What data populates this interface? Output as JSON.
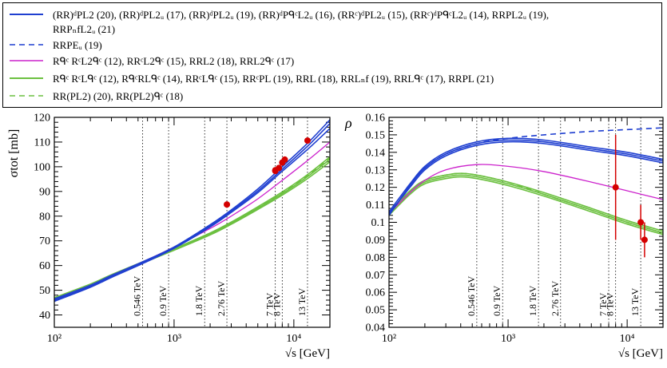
{
  "legend": [
    {
      "text": "(RR)ᵈPL2 (20), (RR)ᵈPL2ᵤ (17), (RR)ᵈPL2ᵤ (19), (RR)ᵈPᑫᶜL2ᵤ (16), (RRᶜ)ᵈPL2ᵤ (15), (RRᶜ)ᵈPᑫᶜL2ᵤ (14), RRPL2ᵤ (19),",
      "color": "#1f3fd0",
      "dash": "solid"
    },
    {
      "text": "RRPₙfL2ᵤ (21)",
      "color": "",
      "dash": "none"
    },
    {
      "text": "RRPEᵤ (19)",
      "color": "#1f3fd0",
      "dash": "dashed"
    },
    {
      "text": "Rᑫᶜ RᶜL2ᑫᶜ (12), RRᶜL2ᑫᶜ (15), RRL2 (18), RRL2ᑫᶜ (17)",
      "color": "#cc22cc",
      "dash": "solid"
    },
    {
      "text": "Rᑫᶜ RᶜLᑫᶜ (12), RᑫᶜRLᑫᶜ (14), RRᶜLᑫᶜ (15), RRᶜPL (19), RRL (18), RRLₙf (19), RRLᑫᶜ (17), RRPL (21)",
      "color": "#6cc040",
      "dash": "solid"
    },
    {
      "text": "RR(PL2) (20), RR(PL2)ᑫᶜ (18)",
      "color": "#6cc040",
      "dash": "dashed"
    }
  ],
  "chart_data": [
    {
      "type": "line",
      "name": "sigma_tot",
      "ylabel": "σtot  [mb]",
      "xlabel": "√s   [GeV]",
      "xscale": "log",
      "xlim": [
        100,
        20000
      ],
      "ylim": [
        35,
        120
      ],
      "yticks": [
        40,
        50,
        60,
        70,
        80,
        90,
        100,
        110,
        120
      ],
      "xticks": [
        {
          "value": 100,
          "label": "10²"
        },
        {
          "value": 1000,
          "label": "10³"
        },
        {
          "value": 10000,
          "label": "10⁴"
        }
      ],
      "energy_lines": [
        {
          "x": 546,
          "label": "0.546 TeV"
        },
        {
          "x": 900,
          "label": "0.9 TeV"
        },
        {
          "x": 1800,
          "label": "1.8 TeV"
        },
        {
          "x": 2760,
          "label": "2.76 TeV"
        },
        {
          "x": 7000,
          "label": "7 TeV"
        },
        {
          "x": 8000,
          "label": "8 TeV"
        },
        {
          "x": 13000,
          "label": "13 TeV"
        }
      ],
      "series": [
        {
          "group": "blue",
          "color": "#1f3fd0",
          "dash": "solid",
          "x": [
            100,
            200,
            300,
            546,
            1000,
            2000,
            3000,
            5000,
            8000,
            13000,
            20000
          ],
          "y": [
            46.5,
            52,
            56,
            61.5,
            67.5,
            76.5,
            82.5,
            91,
            100,
            109.5,
            119
          ]
        },
        {
          "group": "blue",
          "color": "#1f3fd0",
          "dash": "solid",
          "x": [
            100,
            200,
            300,
            546,
            1000,
            2000,
            3000,
            5000,
            8000,
            13000,
            20000
          ],
          "y": [
            46,
            51.5,
            55.5,
            61,
            67.2,
            76,
            82,
            90.2,
            99,
            108.3,
            117.5
          ]
        },
        {
          "group": "blue",
          "color": "#1f3fd0",
          "dash": "solid",
          "x": [
            100,
            200,
            300,
            546,
            1000,
            2000,
            3000,
            5000,
            8000,
            13000,
            20000
          ],
          "y": [
            45.5,
            51.2,
            55.2,
            60.8,
            67,
            75.6,
            81.5,
            89.5,
            98.2,
            107,
            115.5
          ]
        },
        {
          "group": "magenta",
          "color": "#cc22cc",
          "dash": "solid",
          "x": [
            100,
            200,
            300,
            546,
            1000,
            2000,
            3000,
            5000,
            8000,
            13000,
            20000
          ],
          "y": [
            46.5,
            52,
            56,
            61.5,
            67.5,
            75,
            80,
            87,
            94.5,
            102.5,
            110
          ]
        },
        {
          "group": "green",
          "color": "#6cc040",
          "dash": "solid",
          "x": [
            100,
            200,
            300,
            546,
            1000,
            2000,
            3000,
            5000,
            8000,
            13000,
            20000
          ],
          "y": [
            47,
            52.5,
            56.3,
            61.5,
            66.8,
            73.2,
            77.6,
            83.8,
            89.8,
            96.8,
            104
          ]
        },
        {
          "group": "green",
          "color": "#6cc040",
          "dash": "solid",
          "x": [
            100,
            200,
            300,
            546,
            1000,
            2000,
            3000,
            5000,
            8000,
            13000,
            20000
          ],
          "y": [
            46.8,
            52.2,
            56,
            61.3,
            66.5,
            72.8,
            77.1,
            83.2,
            89.1,
            96,
            103
          ]
        },
        {
          "group": "green",
          "color": "#6cc040",
          "dash": "solid",
          "x": [
            100,
            200,
            300,
            546,
            1000,
            2000,
            3000,
            5000,
            8000,
            13000,
            20000
          ],
          "y": [
            46.6,
            52,
            55.8,
            61,
            66.2,
            72.4,
            76.7,
            82.7,
            88.5,
            95.2,
            102
          ]
        },
        {
          "group": "green",
          "color": "#6cc040",
          "dash": "dashed",
          "x": [
            100,
            200,
            300,
            546,
            1000,
            2000,
            3000,
            5000,
            8000,
            13000,
            20000
          ],
          "y": [
            46.9,
            52.3,
            56.1,
            61.4,
            66.6,
            72.9,
            77.3,
            83.4,
            89.4,
            96.4,
            103.5
          ]
        }
      ],
      "points": [
        {
          "x": 2760,
          "y": 84.7
        },
        {
          "x": 7000,
          "y": 98.3
        },
        {
          "x": 7000,
          "y": 98.6
        },
        {
          "x": 7500,
          "y": 99.5
        },
        {
          "x": 8000,
          "y": 101.7
        },
        {
          "x": 8400,
          "y": 102.9
        },
        {
          "x": 13000,
          "y": 110.6
        }
      ]
    },
    {
      "type": "line",
      "name": "rho",
      "ylabel": "ρ",
      "xlabel": "√s   [GeV]",
      "xscale": "log",
      "xlim": [
        100,
        20000
      ],
      "ylim": [
        0.04,
        0.16
      ],
      "yticks": [
        0.04,
        0.05,
        0.06,
        0.07,
        0.08,
        0.09,
        0.1,
        0.11,
        0.12,
        0.13,
        0.14,
        0.15,
        0.16
      ],
      "xticks": [
        {
          "value": 100,
          "label": "10²"
        },
        {
          "value": 1000,
          "label": "10³"
        },
        {
          "value": 10000,
          "label": "10⁴"
        }
      ],
      "energy_lines": [
        {
          "x": 546,
          "label": "0.546 TeV"
        },
        {
          "x": 900,
          "label": "0.9 TeV"
        },
        {
          "x": 1800,
          "label": "1.8 TeV"
        },
        {
          "x": 2760,
          "label": "2.76 TeV"
        },
        {
          "x": 7000,
          "label": "7 TeV"
        },
        {
          "x": 8000,
          "label": "8 TeV"
        },
        {
          "x": 13000,
          "label": "13 TeV"
        }
      ],
      "series": [
        {
          "group": "blue",
          "color": "#1f3fd0",
          "dash": "solid",
          "x": [
            100,
            150,
            200,
            300,
            546,
            1000,
            2000,
            5000,
            10000,
            20000
          ],
          "y": [
            0.104,
            0.121,
            0.131,
            0.139,
            0.145,
            0.147,
            0.146,
            0.142,
            0.139,
            0.135
          ]
        },
        {
          "group": "blue",
          "color": "#1f3fd0",
          "dash": "solid",
          "x": [
            100,
            150,
            200,
            300,
            546,
            1000,
            2000,
            5000,
            10000,
            20000
          ],
          "y": [
            0.106,
            0.122,
            0.132,
            0.14,
            0.146,
            0.148,
            0.147,
            0.143,
            0.14,
            0.136
          ]
        },
        {
          "group": "blue",
          "color": "#1f3fd0",
          "dash": "solid",
          "x": [
            100,
            150,
            200,
            300,
            546,
            1000,
            2000,
            5000,
            10000,
            20000
          ],
          "y": [
            0.105,
            0.12,
            0.13,
            0.138,
            0.144,
            0.146,
            0.145,
            0.141,
            0.138,
            0.134
          ]
        },
        {
          "group": "blue-dashed",
          "color": "#1f3fd0",
          "dash": "dashed",
          "x": [
            100,
            150,
            200,
            300,
            546,
            1000,
            2000,
            5000,
            10000,
            20000
          ],
          "y": [
            0.104,
            0.121,
            0.131,
            0.139,
            0.145,
            0.148,
            0.15,
            0.152,
            0.153,
            0.154
          ]
        },
        {
          "group": "magenta",
          "color": "#cc22cc",
          "dash": "solid",
          "x": [
            100,
            150,
            200,
            300,
            546,
            1000,
            2000,
            5000,
            10000,
            20000
          ],
          "y": [
            0.105,
            0.117,
            0.124,
            0.13,
            0.133,
            0.132,
            0.129,
            0.123,
            0.118,
            0.113
          ]
        },
        {
          "group": "green",
          "color": "#6cc040",
          "dash": "solid",
          "x": [
            100,
            150,
            200,
            300,
            400,
            546,
            1000,
            2000,
            5000,
            10000,
            20000
          ],
          "y": [
            0.106,
            0.118,
            0.124,
            0.127,
            0.128,
            0.127,
            0.123,
            0.117,
            0.108,
            0.101,
            0.095
          ]
        },
        {
          "group": "green",
          "color": "#6cc040",
          "dash": "solid",
          "x": [
            100,
            150,
            200,
            300,
            400,
            546,
            1000,
            2000,
            5000,
            10000,
            20000
          ],
          "y": [
            0.105,
            0.117,
            0.123,
            0.126,
            0.127,
            0.126,
            0.122,
            0.116,
            0.107,
            0.1,
            0.094
          ]
        },
        {
          "group": "green",
          "color": "#6cc040",
          "dash": "solid",
          "x": [
            100,
            150,
            200,
            300,
            400,
            546,
            1000,
            2000,
            5000,
            10000,
            20000
          ],
          "y": [
            0.104,
            0.116,
            0.122,
            0.125,
            0.126,
            0.125,
            0.121,
            0.115,
            0.106,
            0.099,
            0.093
          ]
        },
        {
          "group": "green",
          "color": "#6cc040",
          "dash": "dashed",
          "x": [
            100,
            150,
            200,
            300,
            400,
            546,
            1000,
            2000,
            5000,
            10000,
            20000
          ],
          "y": [
            0.105,
            0.118,
            0.124,
            0.127,
            0.128,
            0.127,
            0.123,
            0.116,
            0.107,
            0.1,
            0.094
          ]
        }
      ],
      "points": [
        {
          "x": 8000,
          "y": 0.12,
          "err": 0.03
        },
        {
          "x": 13000,
          "y": 0.1,
          "err": 0.01
        },
        {
          "x": 14000,
          "y": 0.09,
          "err": 0.01
        }
      ]
    }
  ]
}
